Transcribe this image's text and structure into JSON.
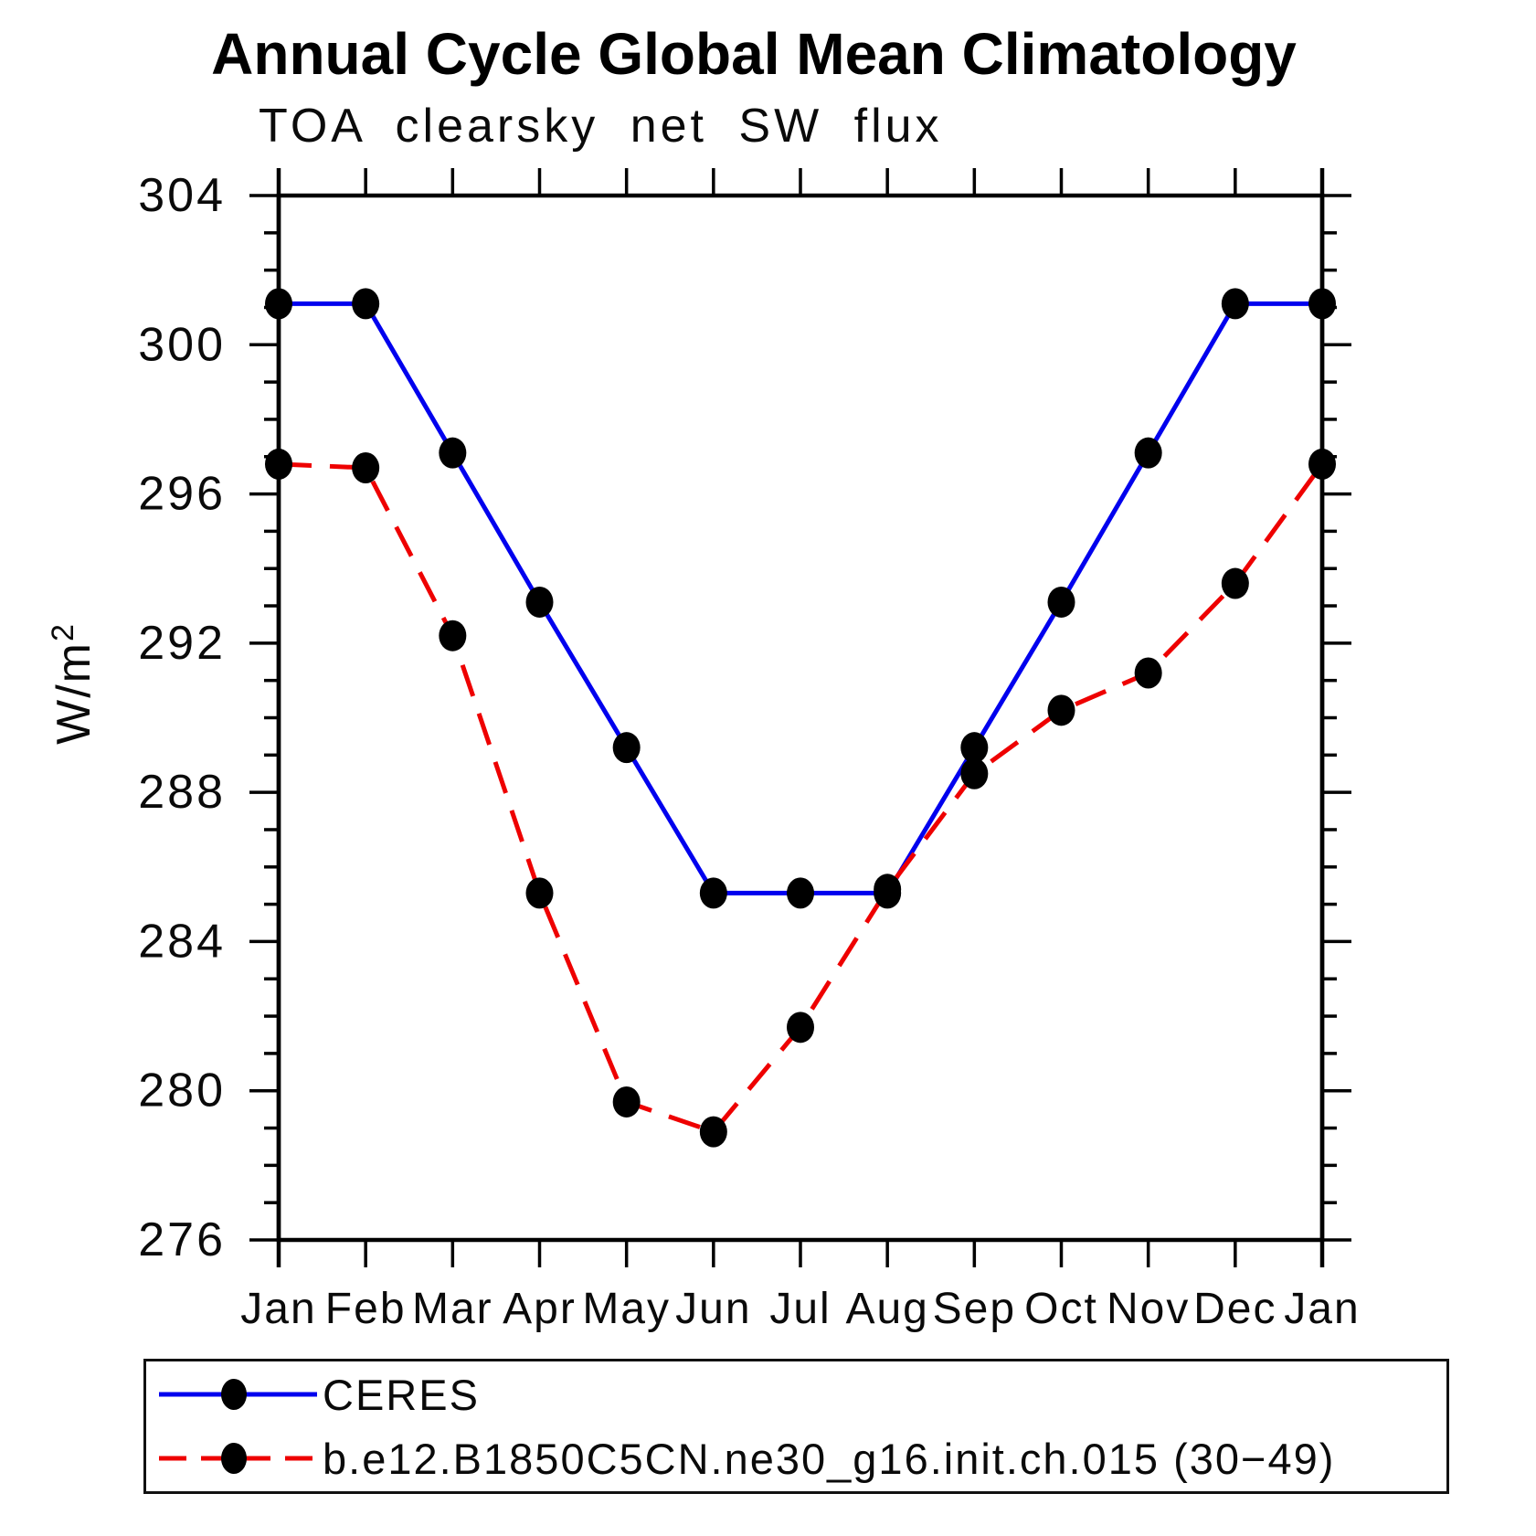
{
  "title": "Annual Cycle Global Mean Climatology",
  "subtitle": "TOA clearsky net SW flux",
  "legend": {
    "items": [
      {
        "label": "CERES",
        "color": "#0000ee",
        "style": "solid"
      },
      {
        "label": "b.e12.B1850C5CN.ne30_g16.init.ch.015 (30−49)",
        "color": "#ee0000",
        "style": "dashed"
      }
    ]
  },
  "chart_data": {
    "type": "line",
    "categories": [
      "Jan",
      "Feb",
      "Mar",
      "Apr",
      "May",
      "Jun",
      "Jul",
      "Aug",
      "Sep",
      "Oct",
      "Nov",
      "Dec",
      "Jan"
    ],
    "series": [
      {
        "name": "CERES",
        "color": "#0000ee",
        "style": "solid",
        "values": [
          301.1,
          301.1,
          297.1,
          293.1,
          289.2,
          285.3,
          285.3,
          285.3,
          289.2,
          293.1,
          297.1,
          301.1,
          301.1
        ]
      },
      {
        "name": "b.e12.B1850C5CN.ne30_g16.init.ch.015 (30−49)",
        "color": "#ee0000",
        "style": "dashed",
        "values": [
          296.8,
          296.7,
          292.2,
          285.3,
          279.7,
          278.9,
          281.7,
          285.4,
          288.5,
          290.2,
          291.2,
          293.6,
          296.8
        ]
      }
    ],
    "marker_color": "#000000",
    "ylabel": {
      "base": "W/m",
      "sup": "2"
    },
    "ylim": [
      276,
      304
    ],
    "yticks_labeled": [
      304,
      300,
      296,
      292,
      288,
      284,
      280,
      276
    ],
    "ytick_minor_step": 1,
    "grid": false,
    "legend_position": "bottom"
  }
}
